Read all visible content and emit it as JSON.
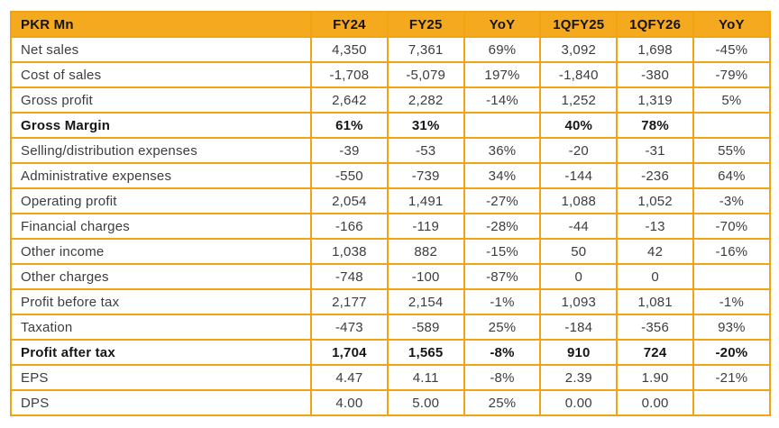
{
  "colors": {
    "header_bg": "#F5A91E",
    "border": "#F1A312",
    "text": "#3D3D3D",
    "bold_text": "#161616",
    "background": "#FFFFFF"
  },
  "chart_data": {
    "type": "table",
    "title": "PKR Mn financial results table",
    "unit_label": "PKR Mn",
    "columns": [
      "PKR Mn",
      "FY24",
      "FY25",
      "YoY",
      "1QFY25",
      "1QFY26",
      "YoY"
    ],
    "rows": [
      {
        "label": "Net sales",
        "values": [
          "4,350",
          "7,361",
          "69%",
          "3,092",
          "1,698",
          "-45%"
        ],
        "bold": false
      },
      {
        "label": "Cost of sales",
        "values": [
          "-1,708",
          "-5,079",
          "197%",
          "-1,840",
          "-380",
          "-79%"
        ],
        "bold": false
      },
      {
        "label": "Gross profit",
        "values": [
          "2,642",
          "2,282",
          "-14%",
          "1,252",
          "1,319",
          "5%"
        ],
        "bold": false
      },
      {
        "label": "Gross Margin",
        "values": [
          "61%",
          "31%",
          "",
          "40%",
          "78%",
          ""
        ],
        "bold": true
      },
      {
        "label": "Selling/distribution expenses",
        "values": [
          "-39",
          "-53",
          "36%",
          "-20",
          "-31",
          "55%"
        ],
        "bold": false
      },
      {
        "label": "Administrative expenses",
        "values": [
          "-550",
          "-739",
          "34%",
          "-144",
          "-236",
          "64%"
        ],
        "bold": false
      },
      {
        "label": "Operating profit",
        "values": [
          "2,054",
          "1,491",
          "-27%",
          "1,088",
          "1,052",
          "-3%"
        ],
        "bold": false
      },
      {
        "label": "Financial charges",
        "values": [
          "-166",
          "-119",
          "-28%",
          "-44",
          "-13",
          "-70%"
        ],
        "bold": false
      },
      {
        "label": "Other income",
        "values": [
          "1,038",
          "882",
          "-15%",
          "50",
          "42",
          "-16%"
        ],
        "bold": false
      },
      {
        "label": "Other charges",
        "values": [
          "-748",
          "-100",
          "-87%",
          "0",
          "0",
          ""
        ],
        "bold": false
      },
      {
        "label": "Profit before tax",
        "values": [
          "2,177",
          "2,154",
          "-1%",
          "1,093",
          "1,081",
          "-1%"
        ],
        "bold": false
      },
      {
        "label": "Taxation",
        "values": [
          "-473",
          "-589",
          "25%",
          "-184",
          "-356",
          "93%"
        ],
        "bold": false
      },
      {
        "label": "Profit after tax",
        "values": [
          "1,704",
          "1,565",
          "-8%",
          "910",
          "724",
          "-20%"
        ],
        "bold": true
      },
      {
        "label": "EPS",
        "values": [
          "4.47",
          "4.11",
          "-8%",
          "2.39",
          "1.90",
          "-21%"
        ],
        "bold": false
      },
      {
        "label": "DPS",
        "values": [
          "4.00",
          "5.00",
          "25%",
          "0.00",
          "0.00",
          ""
        ],
        "bold": false
      }
    ],
    "layout": {
      "grid": true,
      "header_style": "amber-filled",
      "bold_rows": [
        "Gross Margin",
        "Profit after tax"
      ]
    }
  }
}
